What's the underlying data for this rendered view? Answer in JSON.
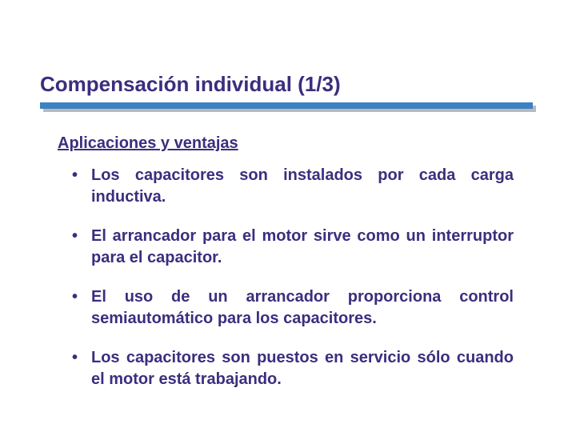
{
  "title": "Compensación individual (1/3)",
  "subtitle": "Aplicaciones y ventajas",
  "bullets": [
    "Los capacitores son instalados por cada carga inductiva.",
    "El arrancador para el motor sirve como un interruptor para el capacitor.",
    "El uso de un arrancador proporciona control semiautomático para los capacitores.",
    "Los capacitores son puestos en servicio sólo cuando el motor está trabajando."
  ],
  "colors": {
    "text": "#3b2e7e",
    "rule": "#3b82c4",
    "rule_shadow": "#b9b9b9",
    "background": "#ffffff"
  },
  "typography": {
    "title_fontsize": 26,
    "subtitle_fontsize": 20,
    "bullet_fontsize": 20,
    "font_family": "Arial",
    "font_weight": "bold"
  }
}
